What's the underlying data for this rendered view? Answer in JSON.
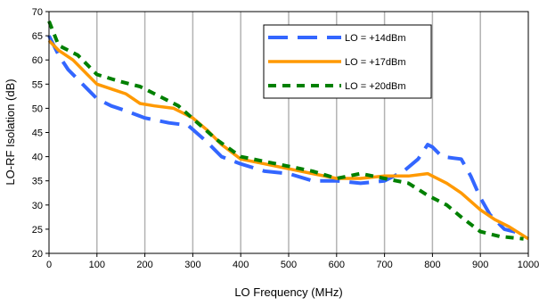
{
  "chart_data": {
    "type": "line",
    "xlabel": "LO Frequency (MHz)",
    "ylabel": "LO-RF Isolation (dB)",
    "xlim": [
      0,
      1000
    ],
    "ylim": [
      20,
      70
    ],
    "x_ticks": [
      0,
      100,
      200,
      300,
      400,
      500,
      600,
      700,
      800,
      900,
      1000
    ],
    "y_ticks": [
      20,
      25,
      30,
      35,
      40,
      45,
      50,
      55,
      60,
      65,
      70
    ],
    "grid": "vertical",
    "legend_position": "top-right",
    "series": [
      {
        "name": "LO = +14dBm",
        "color": "#3366ff",
        "style": "long-dash",
        "x": [
          0,
          20,
          40,
          60,
          80,
          100,
          130,
          160,
          200,
          250,
          290,
          330,
          360,
          400,
          450,
          500,
          550,
          600,
          650,
          700,
          740,
          770,
          790,
          800,
          820,
          860,
          880,
          900,
          920,
          950,
          990
        ],
        "y": [
          65,
          61,
          58,
          56,
          54,
          52,
          50.5,
          49.5,
          48,
          47,
          46.5,
          43,
          40,
          38.5,
          37,
          36.5,
          35,
          35,
          34.5,
          35,
          37,
          39.5,
          42.5,
          42,
          40,
          39.5,
          36,
          31.5,
          28,
          25,
          24
        ]
      },
      {
        "name": "LO = +17dBm",
        "color": "#ff9900",
        "style": "solid",
        "x": [
          0,
          20,
          50,
          80,
          100,
          130,
          160,
          190,
          220,
          260,
          300,
          330,
          360,
          400,
          450,
          500,
          550,
          600,
          650,
          700,
          750,
          790,
          800,
          830,
          860,
          900,
          930,
          960,
          1000
        ],
        "y": [
          64,
          62,
          60,
          57,
          55,
          54,
          53,
          51,
          50.5,
          50,
          48,
          45.5,
          42.5,
          39.5,
          38.5,
          37.5,
          36.5,
          35.5,
          35.5,
          36,
          36,
          36.5,
          36,
          34.5,
          32.5,
          29,
          27,
          25.5,
          23
        ]
      },
      {
        "name": "LO = +20dBm",
        "color": "#008000",
        "style": "dashed",
        "x": [
          0,
          20,
          60,
          100,
          150,
          190,
          230,
          270,
          310,
          350,
          400,
          450,
          500,
          550,
          600,
          650,
          700,
          750,
          790,
          830,
          860,
          900,
          940,
          990
        ],
        "y": [
          68,
          63,
          61,
          57,
          55.5,
          54.5,
          52.5,
          50.5,
          47,
          43.5,
          40,
          39,
          38,
          37,
          35.5,
          36.5,
          35.5,
          34.5,
          32,
          30,
          27.5,
          24.5,
          23.5,
          23
        ]
      }
    ]
  }
}
